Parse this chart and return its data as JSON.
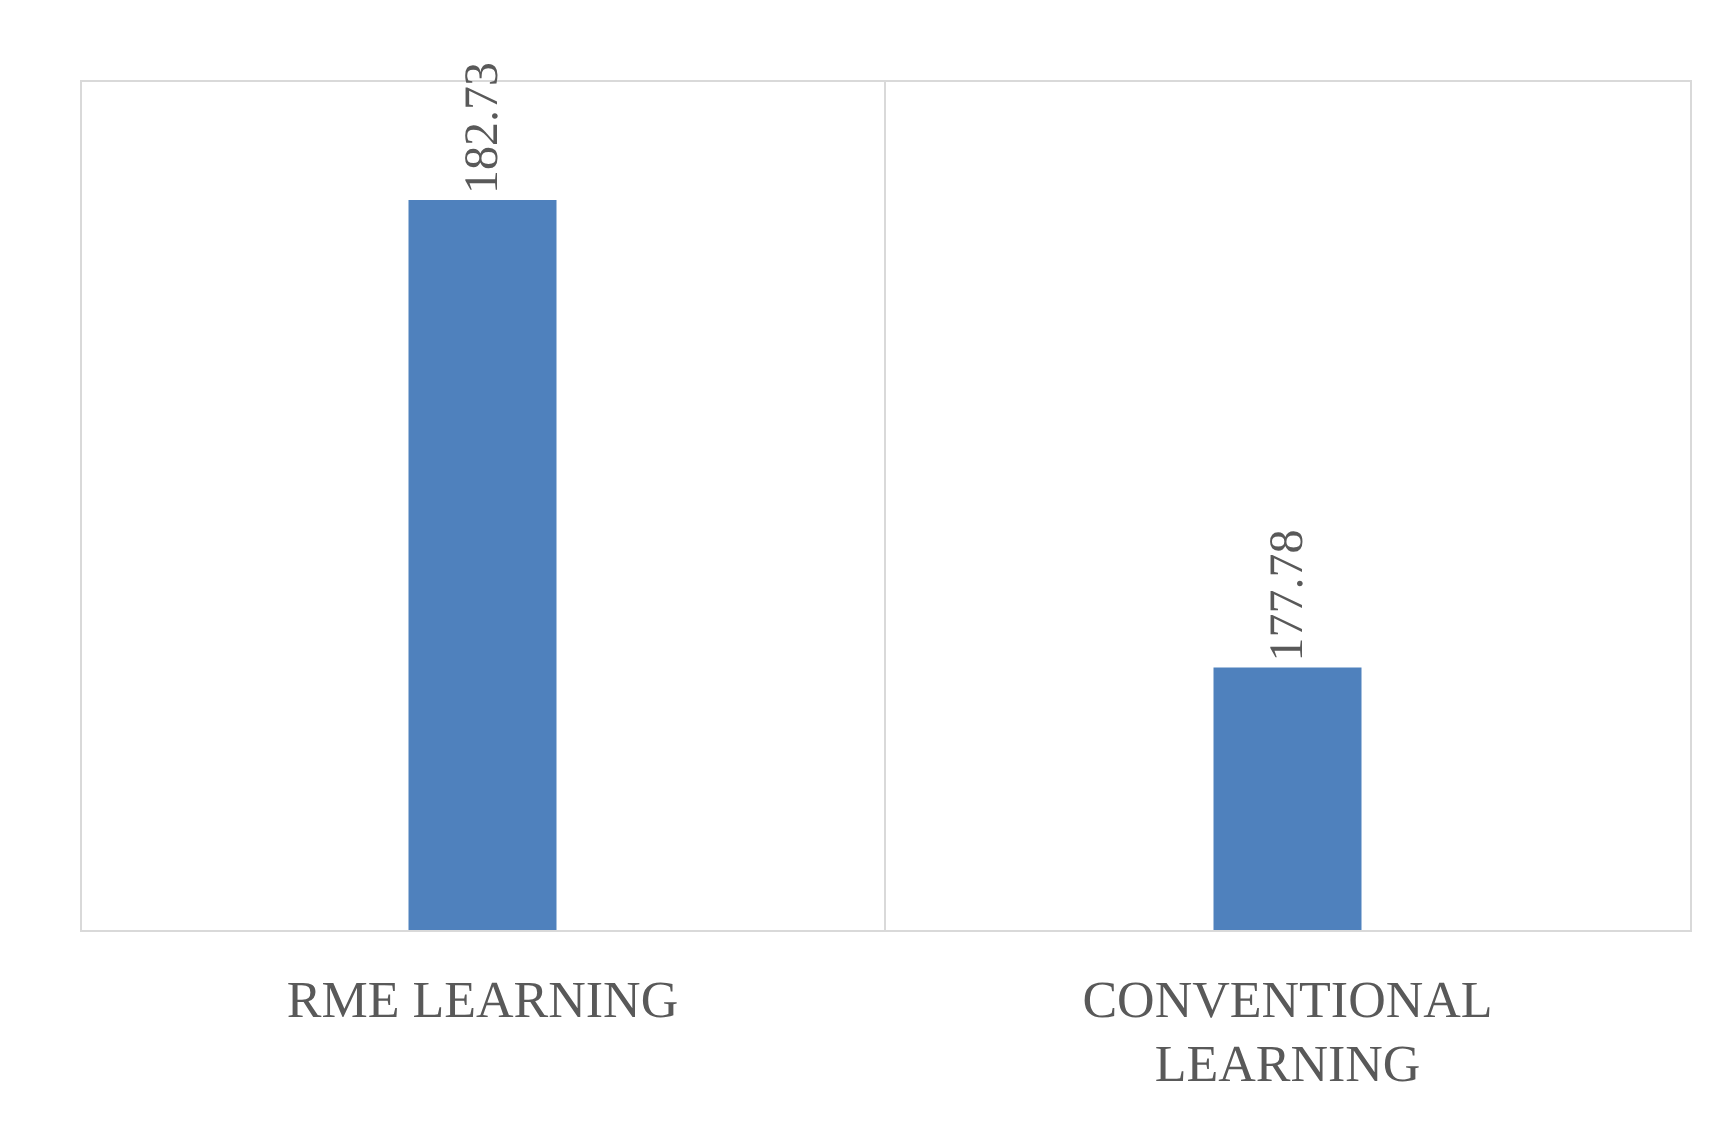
{
  "chart_data": {
    "type": "bar",
    "categories": [
      "RME LEARNING",
      "CONVENTIONAL LEARNING"
    ],
    "values": [
      182.73,
      177.78
    ],
    "color": "#4f81bd",
    "ylim": [
      175,
      184
    ],
    "data_labels": true,
    "tick_labels": "x",
    "grid": "x"
  }
}
